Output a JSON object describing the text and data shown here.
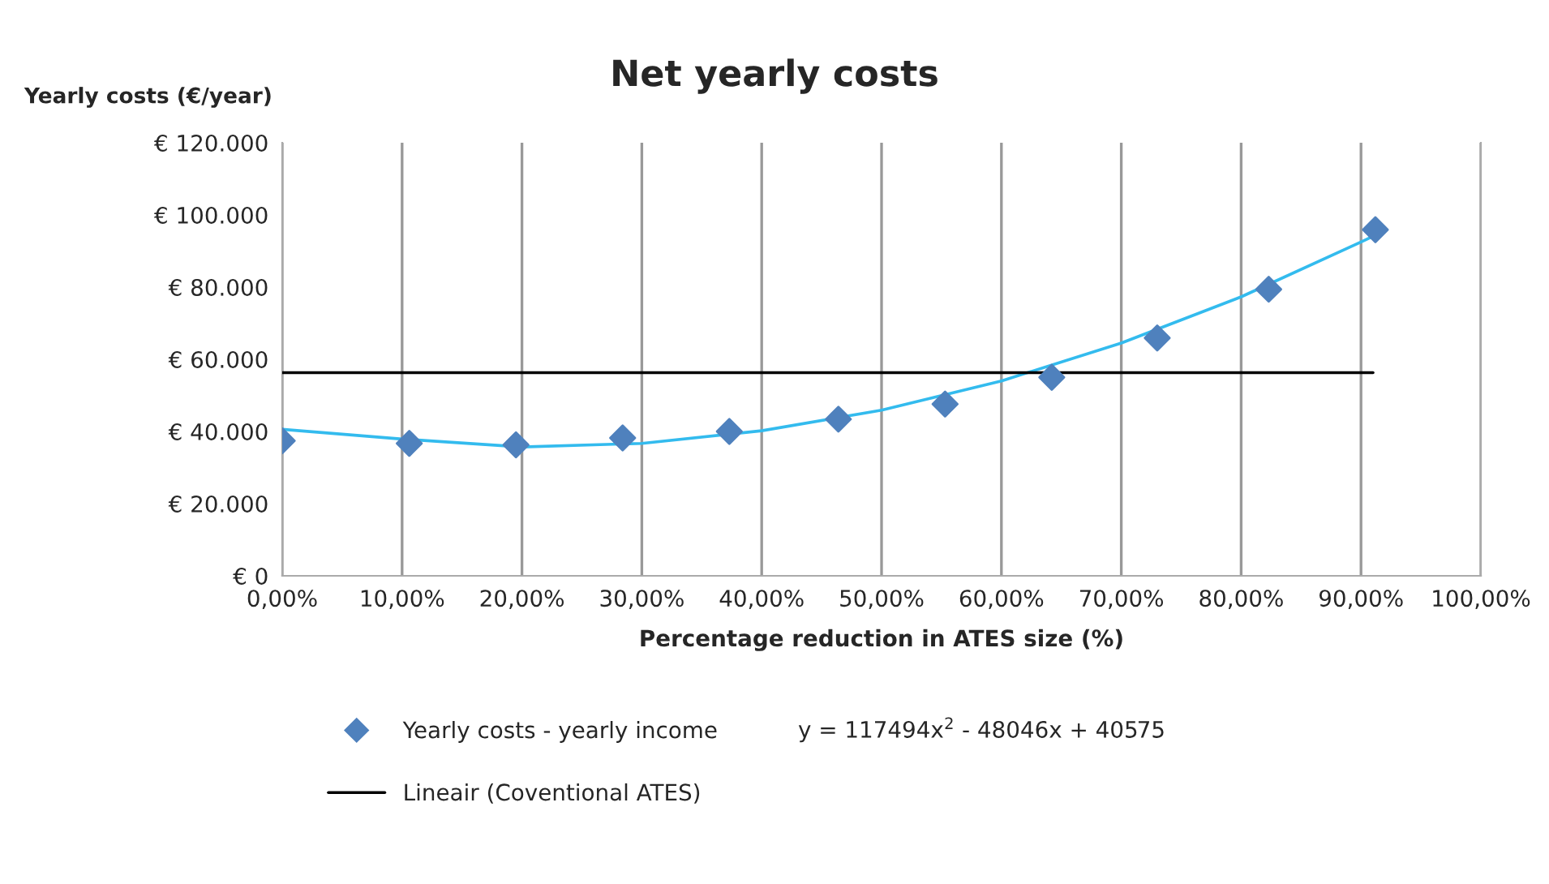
{
  "chart_data": {
    "type": "scatter",
    "title": "Net yearly costs",
    "xlabel": "Percentage reduction in ATES size (%)",
    "ylabel": "Yearly costs (€/year)",
    "series": [
      {
        "name": "Yearly costs - yearly income",
        "marker": "diamond",
        "color": "#4f81bd",
        "x": [
          0,
          0.106,
          0.195,
          0.284,
          0.373,
          0.464,
          0.553,
          0.642,
          0.73,
          0.823,
          0.912
        ],
        "values": [
          37400,
          36700,
          36300,
          38200,
          40000,
          43400,
          47600,
          55000,
          65900,
          79400,
          95900
        ]
      },
      {
        "type": "line",
        "marker": "none",
        "line_style": "solid",
        "color": "#33bbee",
        "x": [
          0,
          0.1,
          0.2,
          0.3,
          0.4,
          0.5,
          0.6,
          0.7,
          0.8,
          0.9,
          0.91
        ],
        "values": [
          40600,
          37900,
          35700,
          36700,
          40200,
          45900,
          54000,
          64500,
          77300,
          92500,
          94100
        ]
      },
      {
        "name": "Lineair (Coventional ATES)",
        "type": "line",
        "marker": "none",
        "line_style": "solid",
        "color": "#000000",
        "x": [
          0,
          0.91
        ],
        "values": [
          56300,
          56300
        ]
      }
    ],
    "annotations": [
      "y = 117494x$^{2}$ - 48046x + 40575"
    ],
    "xlim": [
      0,
      1
    ],
    "ylim": [
      0,
      120000
    ],
    "xticks": [
      {
        "value": 0,
        "label": "0,00%"
      },
      {
        "value": 0.1,
        "label": "10,00%"
      },
      {
        "value": 0.2,
        "label": "20,00%"
      },
      {
        "value": 0.3,
        "label": "30,00%"
      },
      {
        "value": 0.4,
        "label": "40,00%"
      },
      {
        "value": 0.5,
        "label": "50,00%"
      },
      {
        "value": 0.6,
        "label": "60,00%"
      },
      {
        "value": 0.7,
        "label": "70,00%"
      },
      {
        "value": 0.8,
        "label": "80,00%"
      },
      {
        "value": 0.9,
        "label": "90,00%"
      },
      {
        "value": 1,
        "label": "100,00%"
      }
    ],
    "yticks": [
      {
        "value": 0,
        "label": "€ 0"
      },
      {
        "value": 20000,
        "label": "€ 20.000"
      },
      {
        "value": 40000,
        "label": "€ 40.000"
      },
      {
        "value": 60000,
        "label": "€ 60.000"
      },
      {
        "value": 80000,
        "label": "€ 80.000"
      },
      {
        "value": 100000,
        "label": "€ 100.000"
      },
      {
        "value": 120000,
        "label": "€ 120.000"
      }
    ],
    "grid": "x",
    "legend": "bottom"
  }
}
